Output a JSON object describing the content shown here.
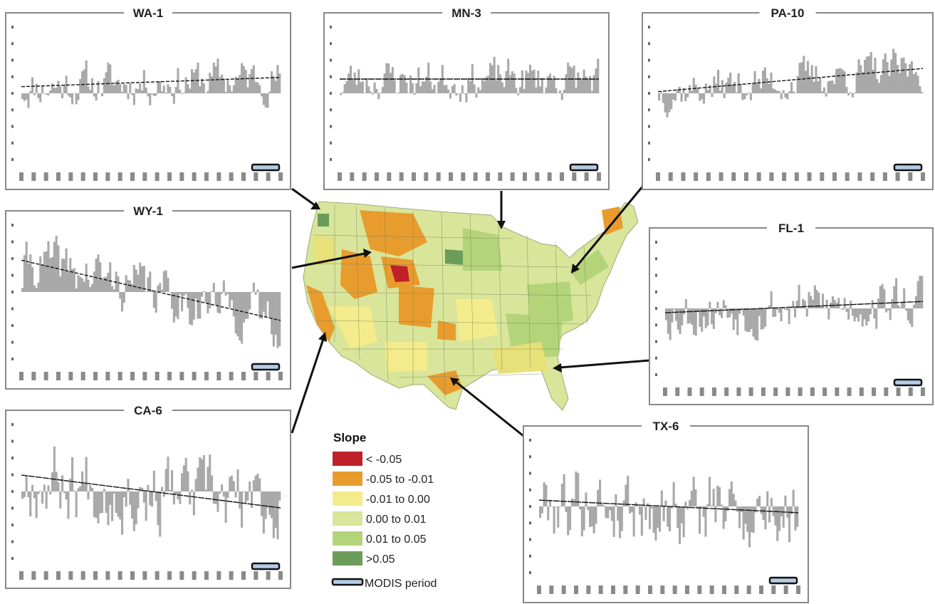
{
  "colors": {
    "bar": "#a9a9a9",
    "trend": "#111111",
    "frame": "#888888",
    "modis": "#b4cce6",
    "arrow": "#111111"
  },
  "legend": {
    "title": "Slope",
    "items": [
      {
        "label": "< -0.05",
        "color": "#be2127"
      },
      {
        "label": "-0.05 to -0.01",
        "color": "#e89c2e"
      },
      {
        "label": "-0.01 to 0.00",
        "color": "#f4ec8c"
      },
      {
        "label": "0.00 to 0.01",
        "color": "#d8e59a"
      },
      {
        "label": "0.01 to 0.05",
        "color": "#b4d47a"
      },
      {
        "label": ">0.05",
        "color": "#6c9c5a"
      }
    ],
    "modis_label": "MODIS period"
  },
  "chart_data": [
    {
      "type": "bar",
      "title": "WA-1",
      "trend": [
        0.2,
        0.48
      ],
      "seed": 11,
      "spread": 0.23
    },
    {
      "type": "bar",
      "title": "MN-3",
      "trend": [
        0.43,
        0.43
      ],
      "seed": 23,
      "spread": 0.22
    },
    {
      "type": "bar",
      "title": "PA-10",
      "trend": [
        0.05,
        0.75
      ],
      "seed": 37,
      "spread": 0.22
    },
    {
      "type": "bar",
      "title": "WY-1",
      "trend": [
        0.95,
        -0.85
      ],
      "seed": 41,
      "spread": 0.28
    },
    {
      "type": "bar",
      "title": "FL-1",
      "trend": [
        -0.13,
        0.21
      ],
      "seed": 53,
      "spread": 0.28
    },
    {
      "type": "bar",
      "title": "CA-6",
      "trend": [
        0.49,
        -0.49
      ],
      "seed": 67,
      "spread": 0.42
    },
    {
      "type": "bar",
      "title": "TX-6",
      "trend": [
        0.19,
        -0.19
      ],
      "seed": 79,
      "spread": 0.42
    }
  ]
}
